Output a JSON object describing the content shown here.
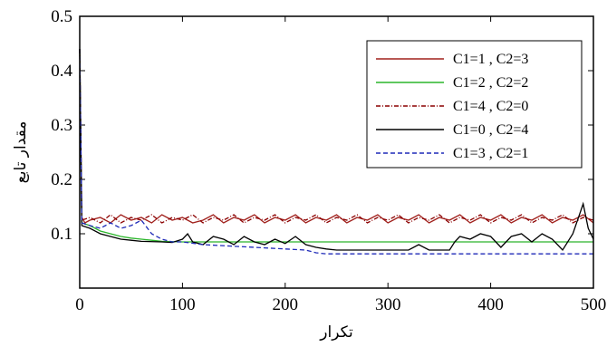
{
  "chart_data": {
    "type": "line",
    "title": "",
    "xlabel": "تکرار",
    "ylabel": "مقدار تابع",
    "xlim": [
      0,
      500
    ],
    "ylim": [
      0,
      0.5
    ],
    "xticks": [
      "0",
      "100",
      "200",
      "300",
      "400",
      "500"
    ],
    "yticks": [
      "0.1",
      "0.2",
      "0.3",
      "0.4",
      "0.5"
    ],
    "x_tick_values": [
      0,
      100,
      200,
      300,
      400,
      500
    ],
    "y_tick_values": [
      0.1,
      0.2,
      0.3,
      0.4,
      0.5
    ],
    "grid": false,
    "legend_position": "top-right",
    "series": [
      {
        "name": "C1=1 , C2=3",
        "color": "#a0201c",
        "style": "solid",
        "points": [
          [
            0,
            0.44
          ],
          [
            2,
            0.13
          ],
          [
            5,
            0.12
          ],
          [
            10,
            0.125
          ],
          [
            20,
            0.13
          ],
          [
            30,
            0.12
          ],
          [
            40,
            0.135
          ],
          [
            50,
            0.125
          ],
          [
            60,
            0.13
          ],
          [
            70,
            0.12
          ],
          [
            80,
            0.135
          ],
          [
            90,
            0.125
          ],
          [
            100,
            0.13
          ],
          [
            110,
            0.12
          ],
          [
            120,
            0.125
          ],
          [
            130,
            0.135
          ],
          [
            140,
            0.12
          ],
          [
            150,
            0.13
          ],
          [
            160,
            0.125
          ],
          [
            170,
            0.135
          ],
          [
            180,
            0.12
          ],
          [
            190,
            0.13
          ],
          [
            200,
            0.125
          ],
          [
            210,
            0.135
          ],
          [
            220,
            0.12
          ],
          [
            230,
            0.13
          ],
          [
            240,
            0.125
          ],
          [
            250,
            0.135
          ],
          [
            260,
            0.12
          ],
          [
            270,
            0.13
          ],
          [
            280,
            0.125
          ],
          [
            290,
            0.135
          ],
          [
            300,
            0.12
          ],
          [
            310,
            0.13
          ],
          [
            320,
            0.125
          ],
          [
            330,
            0.135
          ],
          [
            340,
            0.12
          ],
          [
            350,
            0.13
          ],
          [
            360,
            0.125
          ],
          [
            370,
            0.135
          ],
          [
            380,
            0.12
          ],
          [
            390,
            0.13
          ],
          [
            400,
            0.125
          ],
          [
            410,
            0.135
          ],
          [
            420,
            0.12
          ],
          [
            430,
            0.13
          ],
          [
            440,
            0.125
          ],
          [
            450,
            0.135
          ],
          [
            460,
            0.12
          ],
          [
            470,
            0.13
          ],
          [
            480,
            0.125
          ],
          [
            490,
            0.135
          ],
          [
            500,
            0.12
          ]
        ]
      },
      {
        "name": "C1=2 , C2=2",
        "color": "#2bb52b",
        "style": "solid",
        "points": [
          [
            0,
            0.44
          ],
          [
            2,
            0.12
          ],
          [
            10,
            0.115
          ],
          [
            20,
            0.105
          ],
          [
            30,
            0.1
          ],
          [
            40,
            0.095
          ],
          [
            50,
            0.092
          ],
          [
            60,
            0.09
          ],
          [
            70,
            0.088
          ],
          [
            80,
            0.086
          ],
          [
            100,
            0.085
          ],
          [
            150,
            0.085
          ],
          [
            200,
            0.085
          ],
          [
            300,
            0.085
          ],
          [
            400,
            0.085
          ],
          [
            500,
            0.085
          ]
        ]
      },
      {
        "name": "C1=4 , C2=0",
        "color": "#8b0000",
        "style": "dashdot",
        "points": [
          [
            0,
            0.44
          ],
          [
            2,
            0.125
          ],
          [
            10,
            0.13
          ],
          [
            20,
            0.12
          ],
          [
            30,
            0.135
          ],
          [
            40,
            0.12
          ],
          [
            50,
            0.13
          ],
          [
            60,
            0.125
          ],
          [
            70,
            0.135
          ],
          [
            80,
            0.12
          ],
          [
            90,
            0.13
          ],
          [
            100,
            0.125
          ],
          [
            110,
            0.135
          ],
          [
            120,
            0.12
          ],
          [
            130,
            0.13
          ],
          [
            140,
            0.125
          ],
          [
            150,
            0.135
          ],
          [
            160,
            0.12
          ],
          [
            170,
            0.13
          ],
          [
            180,
            0.125
          ],
          [
            190,
            0.135
          ],
          [
            200,
            0.12
          ],
          [
            210,
            0.13
          ],
          [
            220,
            0.125
          ],
          [
            230,
            0.135
          ],
          [
            240,
            0.12
          ],
          [
            250,
            0.13
          ],
          [
            260,
            0.125
          ],
          [
            270,
            0.135
          ],
          [
            280,
            0.12
          ],
          [
            290,
            0.13
          ],
          [
            300,
            0.125
          ],
          [
            310,
            0.135
          ],
          [
            320,
            0.12
          ],
          [
            330,
            0.13
          ],
          [
            340,
            0.125
          ],
          [
            350,
            0.135
          ],
          [
            360,
            0.12
          ],
          [
            370,
            0.13
          ],
          [
            380,
            0.125
          ],
          [
            390,
            0.135
          ],
          [
            400,
            0.12
          ],
          [
            410,
            0.13
          ],
          [
            420,
            0.125
          ],
          [
            430,
            0.135
          ],
          [
            440,
            0.12
          ],
          [
            450,
            0.13
          ],
          [
            460,
            0.125
          ],
          [
            470,
            0.135
          ],
          [
            480,
            0.12
          ],
          [
            490,
            0.13
          ],
          [
            500,
            0.125
          ]
        ]
      },
      {
        "name": "C1=0 , C2=4",
        "color": "#000000",
        "style": "solid",
        "points": [
          [
            0,
            0.44
          ],
          [
            2,
            0.115
          ],
          [
            10,
            0.11
          ],
          [
            20,
            0.1
          ],
          [
            30,
            0.095
          ],
          [
            40,
            0.09
          ],
          [
            50,
            0.088
          ],
          [
            60,
            0.086
          ],
          [
            80,
            0.085
          ],
          [
            90,
            0.084
          ],
          [
            100,
            0.09
          ],
          [
            105,
            0.1
          ],
          [
            110,
            0.085
          ],
          [
            120,
            0.08
          ],
          [
            130,
            0.095
          ],
          [
            140,
            0.09
          ],
          [
            150,
            0.08
          ],
          [
            160,
            0.095
          ],
          [
            170,
            0.085
          ],
          [
            180,
            0.08
          ],
          [
            190,
            0.09
          ],
          [
            200,
            0.082
          ],
          [
            210,
            0.095
          ],
          [
            220,
            0.08
          ],
          [
            230,
            0.075
          ],
          [
            240,
            0.072
          ],
          [
            250,
            0.07
          ],
          [
            260,
            0.07
          ],
          [
            280,
            0.07
          ],
          [
            300,
            0.07
          ],
          [
            320,
            0.07
          ],
          [
            330,
            0.08
          ],
          [
            340,
            0.07
          ],
          [
            360,
            0.07
          ],
          [
            365,
            0.085
          ],
          [
            370,
            0.095
          ],
          [
            380,
            0.09
          ],
          [
            390,
            0.1
          ],
          [
            400,
            0.095
          ],
          [
            410,
            0.075
          ],
          [
            420,
            0.095
          ],
          [
            430,
            0.1
          ],
          [
            440,
            0.085
          ],
          [
            450,
            0.1
          ],
          [
            460,
            0.09
          ],
          [
            470,
            0.07
          ],
          [
            480,
            0.1
          ],
          [
            490,
            0.155
          ],
          [
            495,
            0.11
          ],
          [
            500,
            0.09
          ]
        ]
      },
      {
        "name": "C1=3 , C2=1",
        "color": "#1f2ab8",
        "style": "dashed",
        "points": [
          [
            0,
            0.44
          ],
          [
            2,
            0.12
          ],
          [
            10,
            0.115
          ],
          [
            20,
            0.11
          ],
          [
            30,
            0.12
          ],
          [
            40,
            0.11
          ],
          [
            50,
            0.115
          ],
          [
            60,
            0.125
          ],
          [
            70,
            0.1
          ],
          [
            80,
            0.09
          ],
          [
            90,
            0.085
          ],
          [
            100,
            0.085
          ],
          [
            120,
            0.08
          ],
          [
            150,
            0.077
          ],
          [
            180,
            0.074
          ],
          [
            200,
            0.072
          ],
          [
            220,
            0.07
          ],
          [
            230,
            0.065
          ],
          [
            240,
            0.063
          ],
          [
            260,
            0.063
          ],
          [
            300,
            0.063
          ],
          [
            400,
            0.063
          ],
          [
            500,
            0.063
          ]
        ]
      }
    ]
  }
}
